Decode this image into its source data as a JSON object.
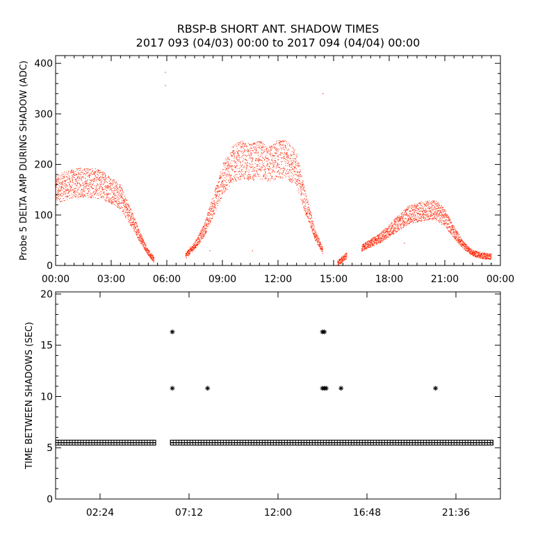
{
  "title_line1": "RBSP-B SHORT ANT. SHADOW TIMES",
  "title_line2": "2017 093 (04/03) 00:00 to 2017 094 (04/04) 00:00",
  "colors": {
    "top_points": "#ff2200",
    "bottom_points": "#000000",
    "axes": "#000000"
  },
  "chart_data": [
    {
      "type": "scatter",
      "ylabel": "Probe 5 DELTA AMP DURING SHADOW (ADC)",
      "xlim": [
        0,
        24
      ],
      "ylim": [
        0,
        400
      ],
      "xticks": [
        "00:00",
        "03:00",
        "06:00",
        "09:00",
        "12:00",
        "15:00",
        "18:00",
        "21:00",
        "00:00"
      ],
      "yticks": [
        "0",
        "100",
        "200",
        "300",
        "400"
      ],
      "band_note_points": [
        [
          0.0,
          150
        ],
        [
          0.5,
          158
        ],
        [
          1.0,
          163
        ],
        [
          1.5,
          165
        ],
        [
          2.0,
          164
        ],
        [
          2.5,
          160
        ],
        [
          3.0,
          150
        ],
        [
          3.5,
          135
        ],
        [
          4.0,
          100
        ],
        [
          4.5,
          60
        ],
        [
          5.0,
          25
        ],
        [
          5.3,
          12
        ],
        [
          6.3,
          5
        ],
        [
          7.0,
          20
        ],
        [
          7.5,
          40
        ],
        [
          8.0,
          70
        ],
        [
          8.5,
          120
        ],
        [
          9.0,
          170
        ],
        [
          9.5,
          200
        ],
        [
          10.0,
          210
        ],
        [
          10.5,
          205
        ],
        [
          11.0,
          210
        ],
        [
          11.5,
          200
        ],
        [
          12.0,
          212
        ],
        [
          12.5,
          210
        ],
        [
          13.0,
          190
        ],
        [
          13.5,
          120
        ],
        [
          14.0,
          60
        ],
        [
          14.4,
          30
        ],
        [
          15.2,
          5
        ],
        [
          15.7,
          20
        ],
        [
          16.5,
          35
        ],
        [
          17.0,
          45
        ],
        [
          17.5,
          55
        ],
        [
          18.0,
          70
        ],
        [
          18.5,
          85
        ],
        [
          19.0,
          100
        ],
        [
          19.5,
          105
        ],
        [
          20.0,
          110
        ],
        [
          20.5,
          110
        ],
        [
          21.0,
          95
        ],
        [
          21.5,
          65
        ],
        [
          22.0,
          40
        ],
        [
          22.5,
          25
        ],
        [
          23.0,
          20
        ],
        [
          23.5,
          18
        ]
      ],
      "outliers": [
        [
          5.9,
          383
        ],
        [
          5.9,
          357
        ],
        [
          14.4,
          341
        ],
        [
          8.3,
          30
        ],
        [
          10.6,
          30
        ],
        [
          18.8,
          45
        ],
        [
          23.5,
          5
        ]
      ]
    },
    {
      "type": "scatter",
      "ylabel": "TIME BETWEEN SHADOWS (SEC)",
      "xlim": [
        0,
        24
      ],
      "ylim": [
        0,
        20
      ],
      "xticks": [
        "02:24",
        "07:12",
        "12:00",
        "16:48",
        "21:36"
      ],
      "yticks": [
        "0",
        "5",
        "10",
        "15",
        "20"
      ],
      "baseline_value": 5.5,
      "baseline_segments": [
        [
          0.0,
          5.4
        ],
        [
          6.2,
          23.6
        ]
      ],
      "points": [
        [
          6.3,
          16.3
        ],
        [
          6.3,
          10.8
        ],
        [
          8.2,
          10.8
        ],
        [
          14.4,
          16.3
        ],
        [
          14.5,
          16.3
        ],
        [
          14.4,
          10.8
        ],
        [
          14.5,
          10.8
        ],
        [
          14.6,
          10.8
        ],
        [
          15.4,
          10.8
        ],
        [
          20.5,
          10.8
        ]
      ]
    }
  ]
}
